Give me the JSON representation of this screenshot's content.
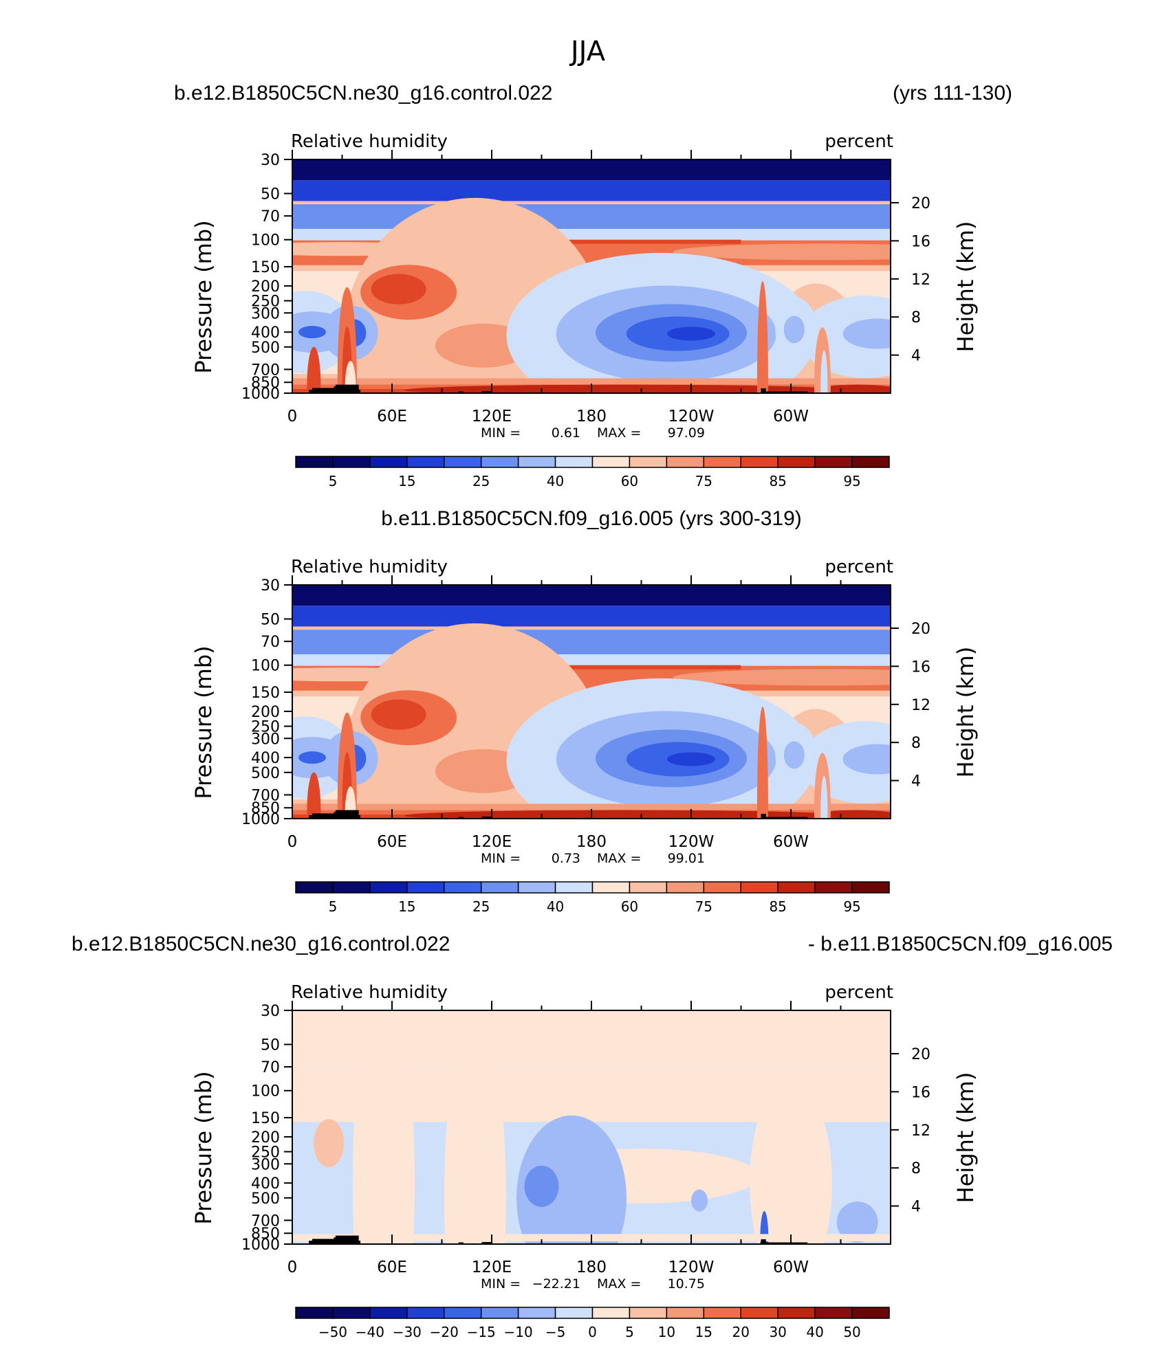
{
  "figure": {
    "title": "JJA"
  },
  "panels": [
    {
      "left_title": "b.e12.B1850C5CN.ne30_g16.control.022",
      "right_title": "(yrs 111-130)",
      "center_title": "",
      "field_label": "Relative  humidity",
      "units_label": "percent",
      "min_label": "MIN =",
      "min_value": "0.61",
      "max_label": "MAX =",
      "max_value": "97.09"
    },
    {
      "left_title": "",
      "right_title": "",
      "center_title": "b.e11.B1850C5CN.f09_g16.005 (yrs 300-319)",
      "field_label": "Relative  humidity",
      "units_label": "percent",
      "min_label": "MIN =",
      "min_value": "0.73",
      "max_label": "MAX =",
      "max_value": "99.01"
    },
    {
      "left_title": "b.e12.B1850C5CN.ne30_g16.control.022",
      "right_title": "- b.e11.B1850C5CN.f09_g16.005",
      "center_title": "",
      "field_label": "Relative  humidity",
      "units_label": "percent",
      "min_label": "MIN =",
      "min_value": "−22.21",
      "max_label": "MAX =",
      "max_value": "10.75"
    }
  ],
  "colors": {
    "palette": [
      "#08086b",
      "#0a1ca8",
      "#1f3fd6",
      "#3a64e8",
      "#6c90f0",
      "#9fbaf6",
      "#cfe0fb",
      "#fde6d6",
      "#f9c2a6",
      "#f59a78",
      "#ee6f4a",
      "#e04525",
      "#bf2410",
      "#8a0d0d"
    ],
    "terrain": "#000000"
  },
  "chart_data": [
    {
      "type": "contour",
      "title": "b.e12.B1850C5CN.ne30_g16.control.022 (yrs 111-130)",
      "variable": "Relative humidity",
      "units": "percent",
      "xlabel": "",
      "ylabel_left": "Pressure  (mb)",
      "ylabel_right": "Height  (km)",
      "x_ticks": [
        "0",
        "60E",
        "120E",
        "180",
        "120W",
        "60W"
      ],
      "x_tick_values": [
        0,
        60,
        120,
        180,
        240,
        300
      ],
      "xlim": [
        0,
        360
      ],
      "y_ticks": [
        "30",
        "50",
        "70",
        "100",
        "150",
        "200",
        "250",
        "300",
        "400",
        "500",
        "700",
        "850",
        "1000"
      ],
      "y_tick_values": [
        30,
        50,
        70,
        100,
        150,
        200,
        250,
        300,
        400,
        500,
        700,
        850,
        1000
      ],
      "ylim": [
        30,
        1000
      ],
      "right_ticks": [
        "20",
        "16",
        "12",
        "8",
        "4"
      ],
      "right_tick_values": [
        20,
        16,
        12,
        8,
        4
      ],
      "min": 0.61,
      "max": 97.09,
      "contour_levels": [
        5,
        10,
        15,
        20,
        25,
        30,
        40,
        50,
        60,
        70,
        75,
        80,
        85,
        90,
        95
      ],
      "colorbar_labels": [
        "5",
        "15",
        "25",
        "40",
        "60",
        "75",
        "85",
        "95"
      ]
    },
    {
      "type": "contour",
      "title": "b.e11.B1850C5CN.f09_g16.005 (yrs 300-319)",
      "variable": "Relative humidity",
      "units": "percent",
      "xlabel": "",
      "ylabel_left": "Pressure  (mb)",
      "ylabel_right": "Height  (km)",
      "x_ticks": [
        "0",
        "60E",
        "120E",
        "180",
        "120W",
        "60W"
      ],
      "x_tick_values": [
        0,
        60,
        120,
        180,
        240,
        300
      ],
      "xlim": [
        0,
        360
      ],
      "y_ticks": [
        "30",
        "50",
        "70",
        "100",
        "150",
        "200",
        "250",
        "300",
        "400",
        "500",
        "700",
        "850",
        "1000"
      ],
      "y_tick_values": [
        30,
        50,
        70,
        100,
        150,
        200,
        250,
        300,
        400,
        500,
        700,
        850,
        1000
      ],
      "ylim": [
        30,
        1000
      ],
      "right_ticks": [
        "20",
        "16",
        "12",
        "8",
        "4"
      ],
      "right_tick_values": [
        20,
        16,
        12,
        8,
        4
      ],
      "min": 0.73,
      "max": 99.01,
      "contour_levels": [
        5,
        10,
        15,
        20,
        25,
        30,
        40,
        50,
        60,
        70,
        75,
        80,
        85,
        90,
        95
      ],
      "colorbar_labels": [
        "5",
        "15",
        "25",
        "40",
        "60",
        "75",
        "85",
        "95"
      ]
    },
    {
      "type": "contour",
      "title": "b.e12.B1850C5CN.ne30_g16.control.022 - b.e11.B1850C5CN.f09_g16.005",
      "variable": "Relative humidity",
      "units": "percent",
      "xlabel": "",
      "ylabel_left": "Pressure  (mb)",
      "ylabel_right": "Height  (km)",
      "x_ticks": [
        "0",
        "60E",
        "120E",
        "180",
        "120W",
        "60W"
      ],
      "x_tick_values": [
        0,
        60,
        120,
        180,
        240,
        300
      ],
      "xlim": [
        0,
        360
      ],
      "y_ticks": [
        "30",
        "50",
        "70",
        "100",
        "150",
        "200",
        "250",
        "300",
        "400",
        "500",
        "700",
        "850",
        "1000"
      ],
      "y_tick_values": [
        30,
        50,
        70,
        100,
        150,
        200,
        250,
        300,
        400,
        500,
        700,
        850,
        1000
      ],
      "ylim": [
        30,
        1000
      ],
      "right_ticks": [
        "20",
        "16",
        "12",
        "8",
        "4"
      ],
      "right_tick_values": [
        20,
        16,
        12,
        8,
        4
      ],
      "min": -22.21,
      "max": 10.75,
      "contour_levels": [
        -50,
        -40,
        -30,
        -20,
        -15,
        -10,
        -5,
        0,
        5,
        10,
        15,
        20,
        30,
        40,
        50
      ],
      "colorbar_labels": [
        "−50",
        "−40",
        "−30",
        "−20",
        "−15",
        "−10",
        "−5",
        "0",
        "5",
        "10",
        "15",
        "20",
        "30",
        "40",
        "50"
      ]
    }
  ]
}
